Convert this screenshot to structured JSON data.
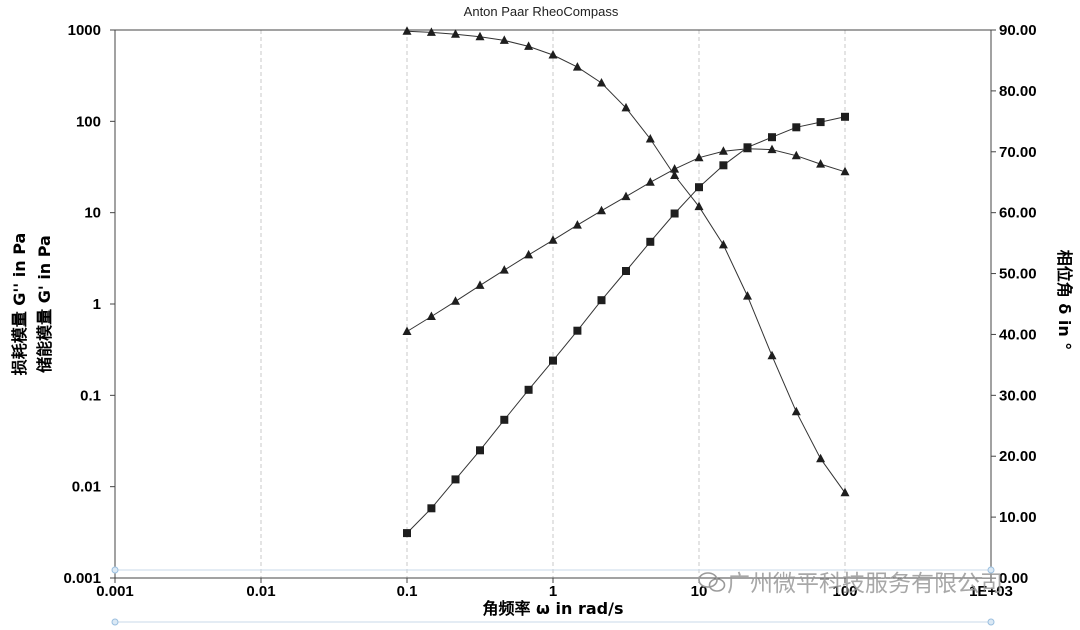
{
  "chart_data": {
    "type": "line",
    "title": "Anton Paar RheoCompass",
    "xlabel": "角频率 ω in rad/s",
    "ylabel_left": [
      "损耗模量 G'' in Pa",
      "储能模量 G' in Pa"
    ],
    "ylabel_right": "相位角 δ in °",
    "x_scale": "log",
    "y_scale": "log",
    "xlim": [
      0.001,
      1000
    ],
    "ylim": [
      0.001,
      1000
    ],
    "y2lim": [
      0,
      90
    ],
    "x_tick_labels": [
      "0.001",
      "0.01",
      "0.1",
      "1",
      "10",
      "100",
      "1E+03"
    ],
    "y_tick_labels": [
      "0.001",
      "0.01",
      "0.1",
      "1",
      "10",
      "100",
      "1000"
    ],
    "y2_tick_labels": [
      "0.00",
      "10.00",
      "20.00",
      "30.00",
      "40.00",
      "50.00",
      "60.00",
      "70.00",
      "80.00",
      "90.00"
    ],
    "grid": "vertical dashed",
    "x": [
      0.1,
      0.147,
      0.215,
      0.316,
      0.464,
      0.681,
      1.0,
      1.47,
      2.15,
      3.16,
      4.64,
      6.81,
      10.0,
      14.7,
      21.5,
      31.6,
      46.4,
      68.1,
      100
    ],
    "series": [
      {
        "marker": "square",
        "axis": "left",
        "values": [
          0.0031,
          0.0058,
          0.012,
          0.025,
          0.054,
          0.115,
          0.24,
          0.51,
          1.1,
          2.3,
          4.8,
          9.8,
          19,
          33,
          52,
          67,
          86,
          98,
          112
        ]
      },
      {
        "marker": "triangle",
        "axis": "left",
        "values": [
          0.5,
          0.73,
          1.07,
          1.6,
          2.35,
          3.45,
          5.0,
          7.3,
          10.5,
          15.0,
          21.5,
          30,
          40,
          47,
          50,
          49,
          42,
          34,
          28
        ]
      },
      {
        "marker": "triangle",
        "axis": "right",
        "values": [
          89.8,
          89.6,
          89.3,
          88.9,
          88.3,
          87.3,
          85.9,
          83.9,
          81.3,
          77.2,
          72.1,
          66.1,
          61.0,
          54.7,
          46.3,
          36.5,
          27.3,
          19.6,
          14.0
        ]
      }
    ]
  },
  "watermark": {
    "text": "广州微平科技服务有限公司",
    "icon": "wechat-icon"
  }
}
